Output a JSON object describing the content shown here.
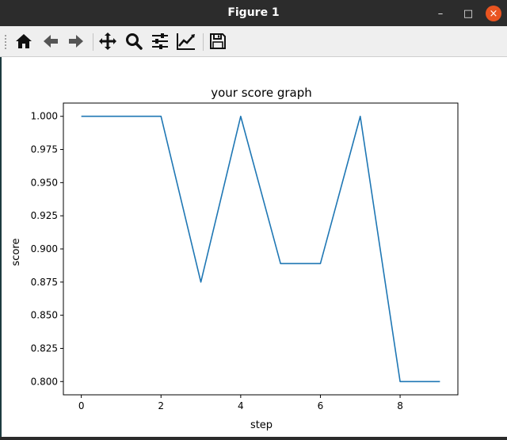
{
  "window": {
    "title": "Figure 1",
    "controls": {
      "minimize": "–",
      "maximize": "□",
      "close": "×"
    }
  },
  "toolbar": {
    "buttons": [
      {
        "icon": "home-icon"
      },
      {
        "icon": "back-arrow-icon"
      },
      {
        "icon": "forward-arrow-icon"
      },
      {
        "icon": "pan-icon"
      },
      {
        "icon": "zoom-icon"
      },
      {
        "icon": "subplots-config-icon"
      },
      {
        "icon": "edit-axes-icon"
      },
      {
        "icon": "save-icon"
      }
    ]
  },
  "chart_data": {
    "type": "line",
    "title": "your score graph",
    "xlabel": "step",
    "ylabel": "score",
    "x": [
      0,
      1,
      2,
      3,
      4,
      5,
      6,
      7,
      8,
      9
    ],
    "series": [
      {
        "values": [
          1.0,
          1.0,
          1.0,
          0.875,
          1.0,
          0.889,
          0.889,
          1.0,
          0.8,
          0.8
        ],
        "color": "#1f77b4"
      }
    ],
    "xlim": [
      -0.45,
      9.45
    ],
    "ylim": [
      0.79,
      1.01
    ],
    "xticks": [
      0,
      2,
      4,
      6,
      8
    ],
    "xtick_labels": [
      "0",
      "2",
      "4",
      "6",
      "8"
    ],
    "yticks": [
      0.8,
      0.825,
      0.85,
      0.875,
      0.9,
      0.925,
      0.95,
      0.975,
      1.0
    ],
    "ytick_labels": [
      "0.800",
      "0.825",
      "0.850",
      "0.875",
      "0.900",
      "0.925",
      "0.950",
      "0.975",
      "1.000"
    ],
    "grid": false,
    "legend": "none"
  }
}
